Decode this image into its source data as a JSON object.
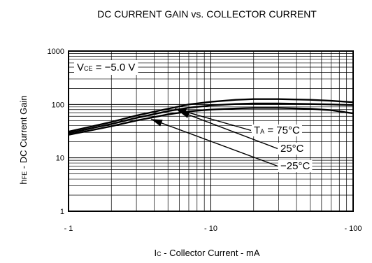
{
  "chart_data": {
    "type": "line",
    "title": "DC CURRENT GAIN vs. COLLECTOR CURRENT",
    "xlabel": {
      "main": "I",
      "sub": "C",
      "rest": " - Collector Current - mA"
    },
    "ylabel": {
      "main": "h",
      "sub": "FE",
      "rest": " - DC Current Gain"
    },
    "x_scale": "log",
    "y_scale": "log",
    "xlim": [
      1,
      100
    ],
    "ylim": [
      1,
      1000
    ],
    "x_ticks": [
      {
        "value": 1,
        "label": "- 1"
      },
      {
        "value": 10,
        "label": "- 10"
      },
      {
        "value": 100,
        "label": "- 100"
      }
    ],
    "y_ticks": [
      {
        "value": 1,
        "label": "1"
      },
      {
        "value": 10,
        "label": "10"
      },
      {
        "value": 100,
        "label": "100"
      },
      {
        "value": 1000,
        "label": "1000"
      }
    ],
    "grid": true,
    "condition": {
      "main": "V",
      "sub": "CE",
      "rest": " = −5.0 V"
    },
    "series": [
      {
        "name": "75°C",
        "label_text": {
          "main": "T",
          "sub": "A",
          "rest": " = 75°C"
        },
        "x": [
          1,
          2,
          3,
          5,
          7,
          10,
          15,
          20,
          30,
          50,
          70,
          100
        ],
        "y": [
          31,
          47,
          62,
          83,
          100,
          112,
          122,
          126,
          126,
          122,
          117,
          110
        ]
      },
      {
        "name": "25°C",
        "label_text": {
          "main": "25°C",
          "sub": "",
          "rest": ""
        },
        "x": [
          1,
          2,
          3,
          5,
          7,
          10,
          15,
          20,
          30,
          50,
          70,
          100
        ],
        "y": [
          29,
          43,
          56,
          75,
          87,
          96,
          102,
          104,
          104,
          102,
          100,
          97
        ]
      },
      {
        "name": "−25°C",
        "label_text": {
          "main": "−25°C",
          "sub": "",
          "rest": ""
        },
        "x": [
          1,
          2,
          3,
          5,
          7,
          10,
          15,
          20,
          30,
          50,
          70,
          100
        ],
        "y": [
          27,
          39,
          50,
          65,
          74,
          80,
          84,
          86,
          86,
          83,
          78,
          68
        ]
      }
    ]
  }
}
